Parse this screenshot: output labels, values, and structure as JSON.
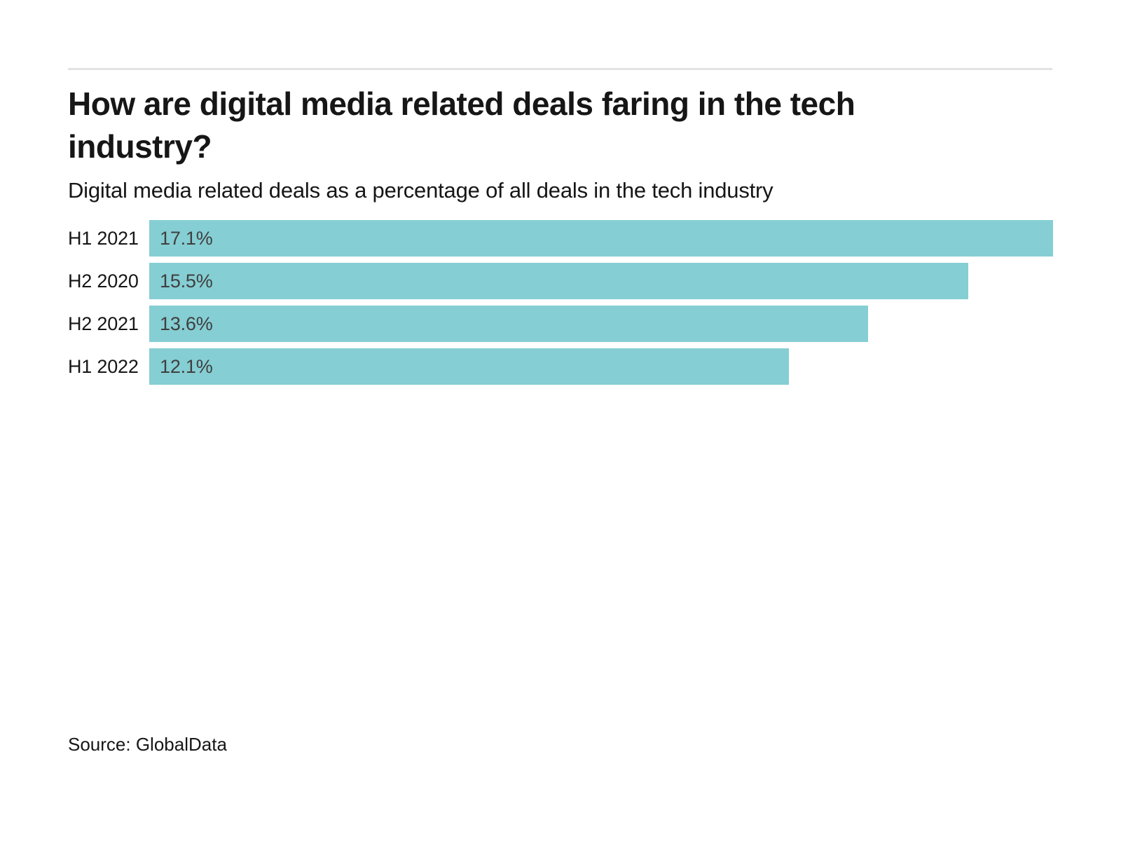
{
  "header": {
    "title": "How are digital media related deals faring in the tech industry?",
    "subtitle": "Digital media related deals as a percentage of all deals in the tech industry"
  },
  "chart_data": {
    "type": "bar",
    "orientation": "horizontal",
    "title": "How are digital media related deals faring in the tech industry?",
    "subtitle": "Digital media related deals as a percentage of all deals in the tech industry",
    "categories": [
      "H1 2021",
      "H2 2020",
      "H2 2021",
      "H1 2022"
    ],
    "values": [
      17.1,
      15.5,
      13.6,
      12.1
    ],
    "value_labels": [
      "17.1%",
      "15.5%",
      "13.6%",
      "12.1%"
    ],
    "xlabel": "",
    "ylabel": "",
    "xlim": [
      0,
      17.1
    ],
    "grid": false,
    "legend": false,
    "bar_color": "#85ced3",
    "value_label_color": "#3f3f3f",
    "category_label_color": "#161616"
  },
  "footer": {
    "source": "Source: GlobalData"
  }
}
